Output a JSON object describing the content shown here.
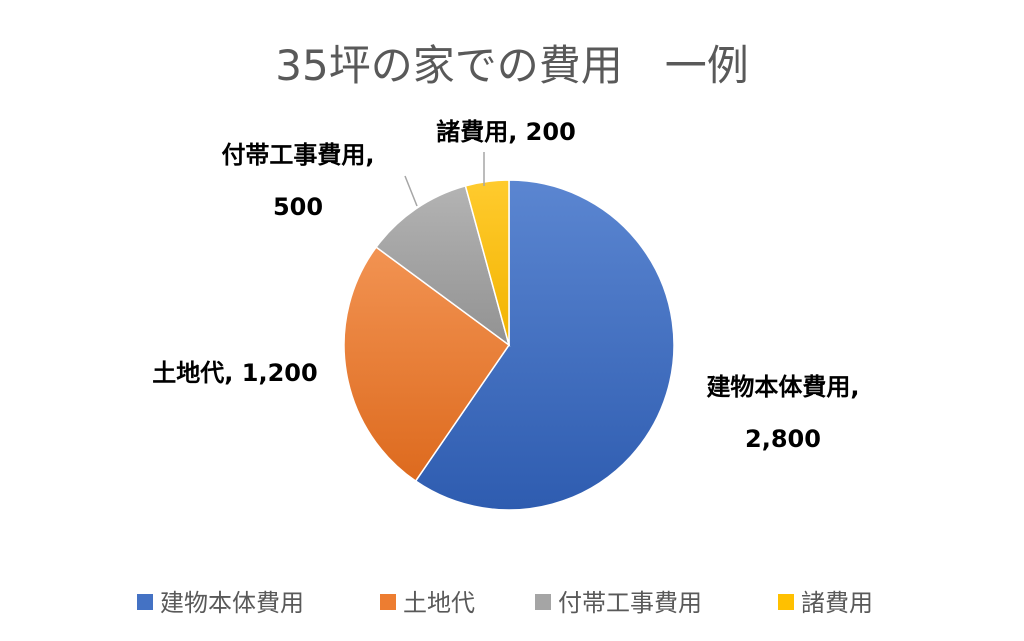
{
  "chart_data": {
    "type": "pie",
    "title": "35坪の家での費用　一例",
    "categories": [
      "建物本体費用",
      "土地代",
      "付帯工事費用",
      "諸費用"
    ],
    "values": [
      2800,
      1200,
      500,
      200
    ],
    "value_labels": [
      "2,800",
      "1,200",
      "500",
      "200"
    ],
    "colors": [
      "#4472C4",
      "#ED7D31",
      "#A5A5A5",
      "#FFC000"
    ],
    "label_separator": ", ",
    "legend_position": "bottom",
    "start_angle_deg": 0,
    "direction": "clockwise"
  }
}
